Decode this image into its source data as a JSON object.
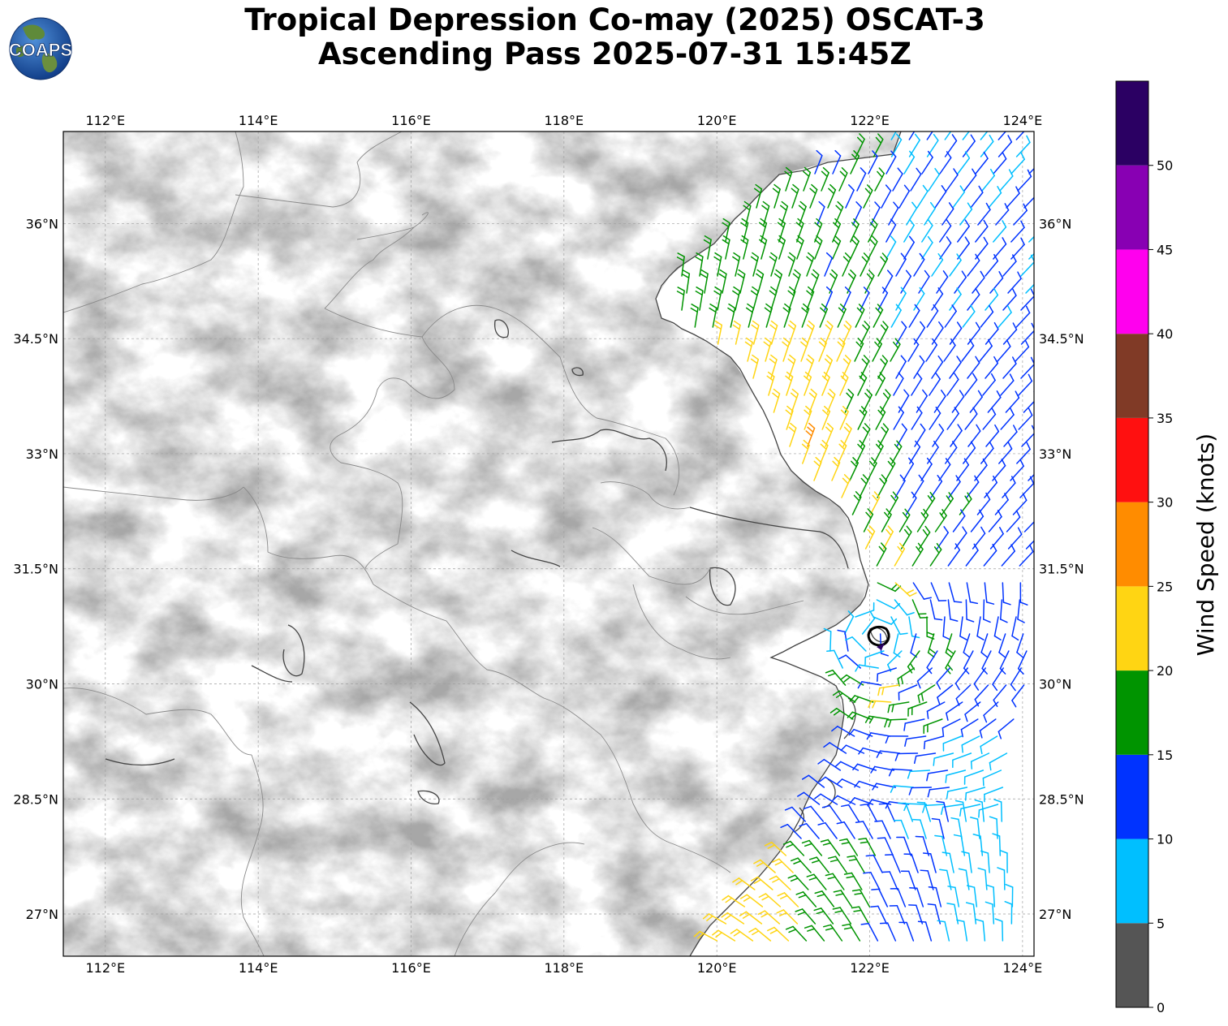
{
  "title": {
    "line1": "Tropical Depression Co-may (2025) OSCAT-3",
    "line2": "Ascending Pass 2025-07-31 15:45Z"
  },
  "logo": {
    "text": "COAPS"
  },
  "map": {
    "lon_range": [
      111.45,
      124.15
    ],
    "lat_range": [
      26.45,
      37.2
    ],
    "lon_ticks": [
      "112°E",
      "114°E",
      "116°E",
      "118°E",
      "120°E",
      "122°E",
      "124°E"
    ],
    "lon_values": [
      112,
      114,
      116,
      118,
      120,
      122,
      124
    ],
    "lat_ticks": [
      "27°N",
      "28.5°N",
      "30°N",
      "31.5°N",
      "33°N",
      "34.5°N",
      "36°N"
    ],
    "lat_values": [
      27,
      28.5,
      30,
      31.5,
      33,
      34.5,
      36
    ],
    "gridlines": true,
    "basemap": "grayscale terrain",
    "storm_center": {
      "lon": 122.1,
      "lat": 30.55
    }
  },
  "colorbar": {
    "label": "Wind Speed (knots)",
    "ticks": [
      "0",
      "5",
      "10",
      "15",
      "20",
      "25",
      "30",
      "35",
      "40",
      "45",
      "50"
    ],
    "tick_values": [
      0,
      5,
      10,
      15,
      20,
      25,
      30,
      35,
      40,
      45,
      50
    ],
    "range": [
      0,
      55
    ],
    "bins": [
      {
        "min": 0,
        "max": 5,
        "color": "#555555"
      },
      {
        "min": 5,
        "max": 10,
        "color": "#00bfff"
      },
      {
        "min": 10,
        "max": 15,
        "color": "#0033ff"
      },
      {
        "min": 15,
        "max": 20,
        "color": "#009400"
      },
      {
        "min": 20,
        "max": 25,
        "color": "#ffd513"
      },
      {
        "min": 25,
        "max": 30,
        "color": "#ff8c00"
      },
      {
        "min": 30,
        "max": 35,
        "color": "#ff1010"
      },
      {
        "min": 35,
        "max": 40,
        "color": "#803a26"
      },
      {
        "min": 40,
        "max": 45,
        "color": "#ff00ee"
      },
      {
        "min": 45,
        "max": 50,
        "color": "#8800b3"
      },
      {
        "min": 50,
        "max": 55,
        "color": "#2b0063"
      }
    ]
  }
}
